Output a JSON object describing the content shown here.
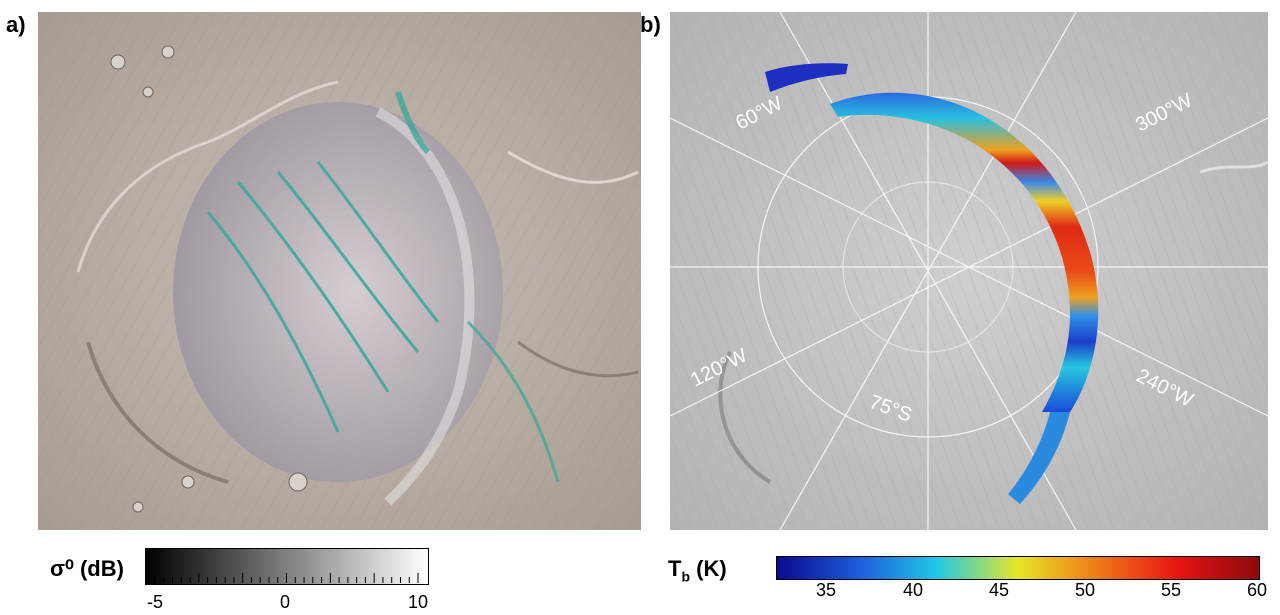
{
  "panel_a": {
    "label": "a)",
    "colorbar": {
      "title": "σ⁰ (dB)",
      "ticks": [
        "-5",
        "0",
        "10"
      ],
      "colors": [
        "#000000",
        "#ffffff"
      ]
    }
  },
  "panel_b": {
    "label": "b)",
    "grid_labels": {
      "lon_60": "60°W",
      "lon_120": "120°W",
      "lon_240": "240°W",
      "lon_300": "300°W",
      "lat_75": "75°S"
    },
    "colorbar": {
      "title_main": "T",
      "title_sub": "b",
      "title_unit": " (K)",
      "ticks": [
        "35",
        "40",
        "45",
        "50",
        "55",
        "60"
      ],
      "colors": [
        "#0a0a8c",
        "#1e5adc",
        "#22c8e6",
        "#e6e628",
        "#f07818",
        "#e61414",
        "#8c0a0a"
      ]
    }
  }
}
